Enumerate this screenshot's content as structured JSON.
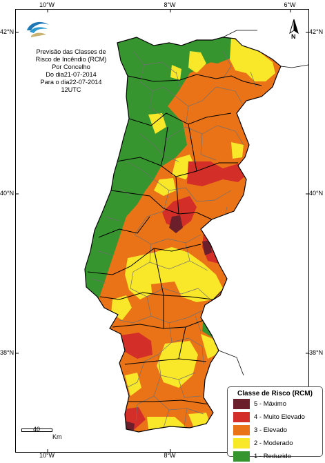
{
  "title": {
    "lines": [
      "Previsão das Classes de",
      "Risco de Incêndio (RCM)",
      "Por Concelho",
      "Do dia21-07-2014",
      "Para o dia22-07-2014",
      "12UTC"
    ]
  },
  "axes": {
    "longitude_labels": [
      "10°W",
      "8°W",
      "6°W"
    ],
    "latitude_labels": [
      "42°N",
      "40°N",
      "38°N"
    ]
  },
  "north_arrow": {
    "label": "N",
    "icon": "north-arrow-icon"
  },
  "scale_bar": {
    "value": "40",
    "unit": "Km"
  },
  "legend": {
    "title": "Classe de Risco (RCM)",
    "items": [
      {
        "label": "5 - Máximo",
        "color": "#6b1f2b"
      },
      {
        "label": "4 - Muito Elevado",
        "color": "#d32f28"
      },
      {
        "label": "3 - Elevado",
        "color": "#ea7317"
      },
      {
        "label": "2 - Moderado",
        "color": "#f9e72a"
      },
      {
        "label": "1 - Reduzido",
        "color": "#37952f"
      }
    ]
  },
  "colors": {
    "sea": "#ffffff",
    "district_border": "#000000",
    "municipality_border": "#707070",
    "land_outside": "#ffffff"
  },
  "logo": {
    "icon": "ipma-logo-icon"
  }
}
